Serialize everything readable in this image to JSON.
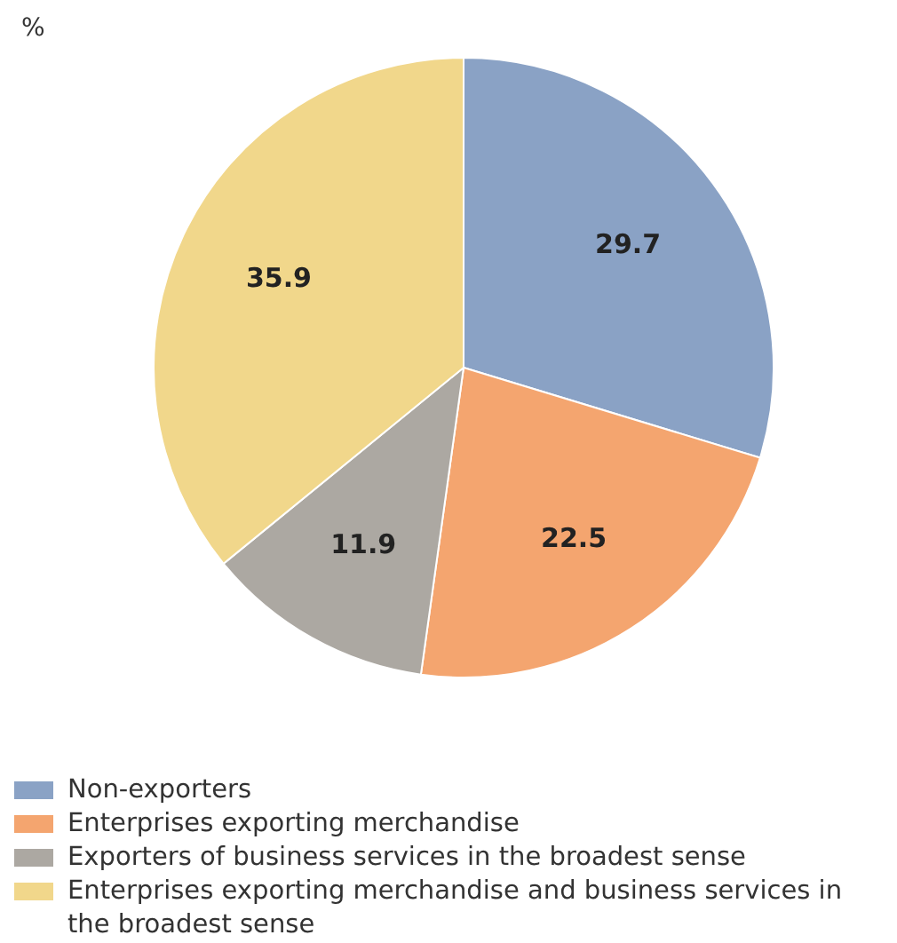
{
  "chart_data": {
    "type": "pie",
    "title": "%",
    "categories": [
      "Non-exporters",
      "Enterprises exporting merchandise",
      "Exporters of business services in the broadest sense",
      "Enterprises exporting merchandise and business services in the broadest sense"
    ],
    "values": [
      29.7,
      22.5,
      11.9,
      35.9
    ],
    "colors": [
      "#8aa2c5",
      "#f4a56f",
      "#aca8a2",
      "#f1d78b"
    ],
    "data_labels": true,
    "legend": "bottom"
  }
}
